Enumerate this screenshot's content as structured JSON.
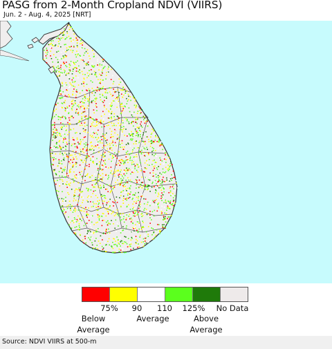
{
  "header": {
    "title": "PASG from 2-Month Cropland NDVI (VIIRS)",
    "subtitle": "Jun. 2 - Aug. 4, 2025 [NRT]"
  },
  "map": {
    "ocean_color": "#c7fbfd",
    "land_color": "#f0eeee",
    "border_color": "#444444"
  },
  "legend": {
    "swatches": [
      {
        "name": "below-75",
        "color": "#ff0000"
      },
      {
        "name": "75-90",
        "color": "#ffff00"
      },
      {
        "name": "90-110",
        "color": "#ffffff"
      },
      {
        "name": "110-125",
        "color": "#5bff1d"
      },
      {
        "name": "above-125",
        "color": "#1f7a0a"
      },
      {
        "name": "no-data",
        "color": "#eeeaea"
      }
    ],
    "ticks": [
      "75%",
      "90",
      "110",
      "125%",
      "No Data"
    ],
    "below_label": "Below\nAverage",
    "average_label": "Average",
    "above_label": "Above\nAverage"
  },
  "footer": {
    "source": "Source: NDVI VIIRS at 500-m"
  }
}
